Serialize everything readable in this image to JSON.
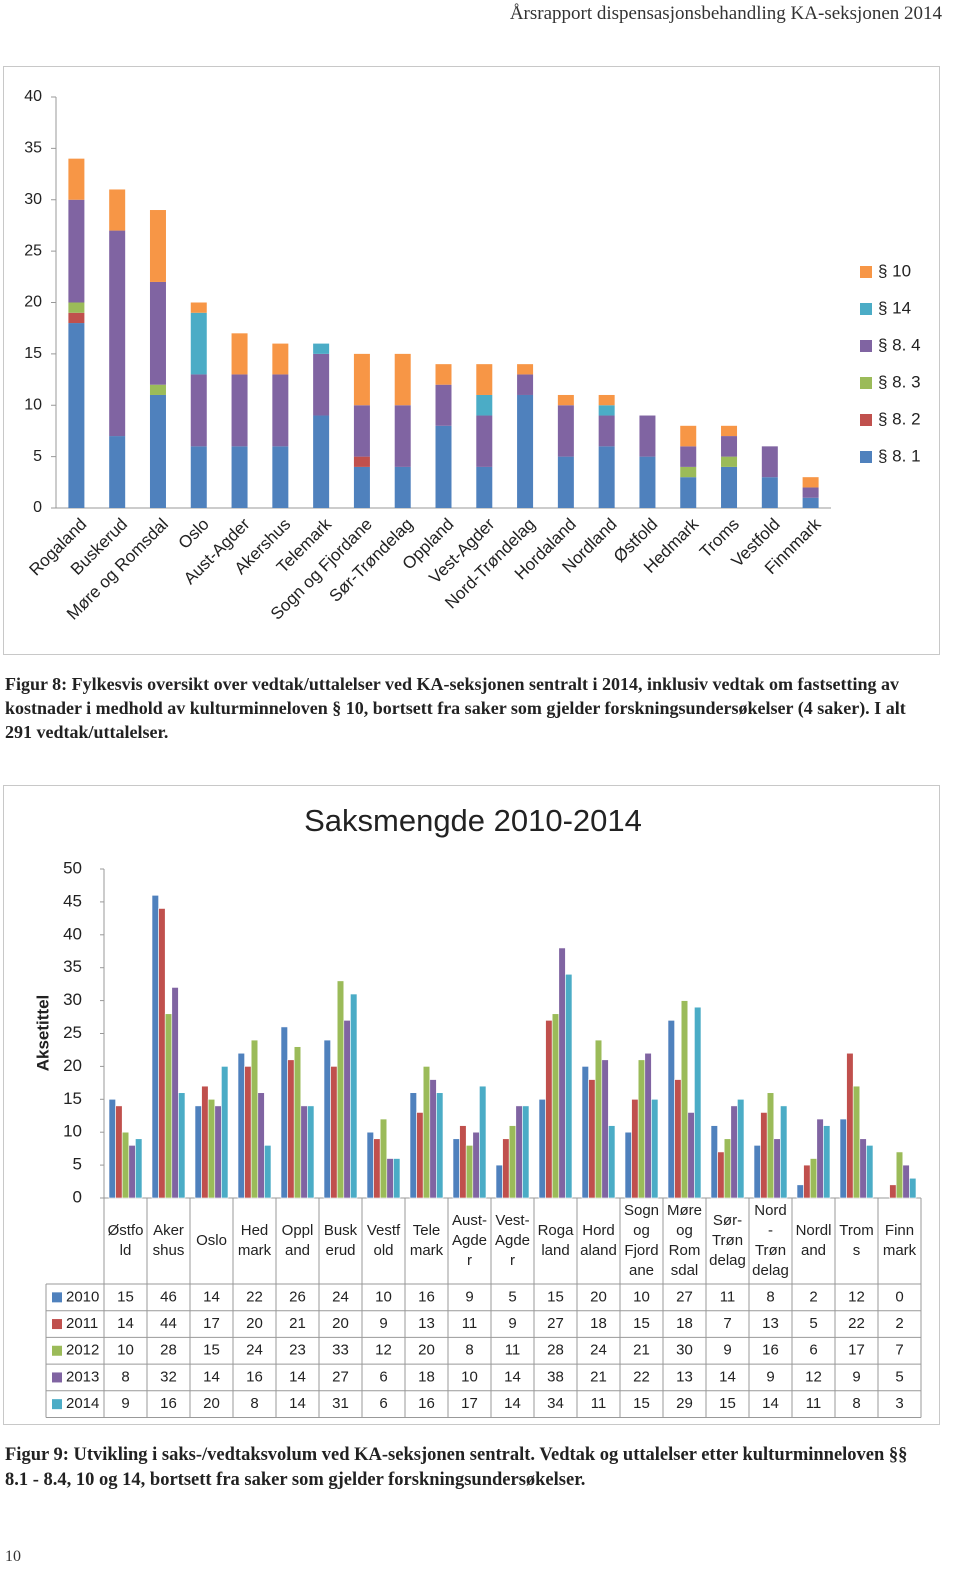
{
  "header": {
    "title": "Årsrapport dispensasjonsbehandling KA-seksjonen 2014"
  },
  "chart_data": [
    {
      "type": "bar",
      "stacked": true,
      "categories": [
        "Rogaland",
        "Buskerud",
        "Møre og Romsdal",
        "Oslo",
        "Aust-Agder",
        "Akershus",
        "Telemark",
        "Sogn og Fjordane",
        "Sør-Trøndelag",
        "Oppland",
        "Vest-Agder",
        "Nord-Trøndelag",
        "Hordaland",
        "Nordland",
        "Østfold",
        "Hedmark",
        "Troms",
        "Vestfold",
        "Finnmark"
      ],
      "series": [
        {
          "name": "§ 8. 1",
          "color": "#4f81bd",
          "values": [
            18,
            7,
            11,
            6,
            6,
            6,
            9,
            4,
            4,
            8,
            4,
            11,
            5,
            6,
            5,
            3,
            4,
            3,
            1
          ]
        },
        {
          "name": "§ 8. 2",
          "color": "#c0504d",
          "values": [
            1,
            0,
            0,
            0,
            0,
            0,
            0,
            1,
            0,
            0,
            0,
            0,
            0,
            0,
            0,
            0,
            0,
            0,
            0
          ]
        },
        {
          "name": "§ 8. 3",
          "color": "#9bbb59",
          "values": [
            1,
            0,
            1,
            0,
            0,
            0,
            0,
            0,
            0,
            0,
            0,
            0,
            0,
            0,
            0,
            1,
            1,
            0,
            0
          ]
        },
        {
          "name": "§ 8. 4",
          "color": "#8064a2",
          "values": [
            10,
            20,
            10,
            7,
            7,
            7,
            6,
            5,
            6,
            4,
            5,
            2,
            5,
            3,
            4,
            2,
            2,
            3,
            1
          ]
        },
        {
          "name": "§ 14",
          "color": "#4bacc6",
          "values": [
            0,
            0,
            0,
            6,
            0,
            0,
            1,
            0,
            0,
            0,
            2,
            0,
            0,
            1,
            0,
            0,
            0,
            0,
            0
          ]
        },
        {
          "name": "§ 10",
          "color": "#f79646",
          "values": [
            4,
            4,
            7,
            1,
            4,
            3,
            0,
            5,
            5,
            2,
            3,
            1,
            1,
            1,
            0,
            2,
            1,
            0,
            1
          ]
        }
      ],
      "ylim": [
        0,
        40
      ],
      "yticks": [
        0,
        5,
        10,
        15,
        20,
        25,
        30,
        35,
        40
      ],
      "legend": "right"
    },
    {
      "type": "bar",
      "title": "Saksmengde 2010-2014",
      "y_label": "Aksetittel",
      "data_table": true,
      "categories": [
        "Østfold",
        "Akershus",
        "Oslo",
        "Hedmark",
        "Oppland",
        "Buskerud",
        "Vestfold",
        "Telemark",
        "Aust-Agder",
        "Vest-Agder",
        "Rogaland",
        "Hordaland",
        "Sogn og Fjordane",
        "Møre og Romsdal",
        "Sør-Trøndelag",
        "Nord-Trøndelag",
        "Nordland",
        "Troms",
        "Finnmark"
      ],
      "series": [
        {
          "name": "2010",
          "color": "#4f81bd",
          "values": [
            15,
            46,
            14,
            22,
            26,
            24,
            10,
            16,
            9,
            5,
            15,
            20,
            10,
            27,
            11,
            8,
            2,
            12,
            0
          ]
        },
        {
          "name": "2011",
          "color": "#c0504d",
          "values": [
            14,
            44,
            17,
            20,
            21,
            20,
            9,
            13,
            11,
            9,
            27,
            18,
            15,
            18,
            7,
            13,
            5,
            22,
            2
          ]
        },
        {
          "name": "2012",
          "color": "#9bbb59",
          "values": [
            10,
            28,
            15,
            24,
            23,
            33,
            12,
            20,
            8,
            11,
            28,
            24,
            21,
            30,
            9,
            16,
            6,
            17,
            7
          ]
        },
        {
          "name": "2013",
          "color": "#8064a2",
          "values": [
            8,
            32,
            14,
            16,
            14,
            27,
            6,
            18,
            10,
            14,
            38,
            21,
            22,
            13,
            14,
            9,
            12,
            9,
            5
          ]
        },
        {
          "name": "2014",
          "color": "#4bacc6",
          "values": [
            9,
            16,
            20,
            8,
            14,
            31,
            6,
            16,
            17,
            14,
            34,
            11,
            15,
            29,
            15,
            14,
            11,
            8,
            3
          ]
        }
      ],
      "ylim": [
        0,
        50
      ],
      "yticks": [
        0,
        5,
        10,
        15,
        20,
        25,
        30,
        35,
        40,
        45,
        50
      ]
    }
  ],
  "captions": [
    "Figur 8: Fylkesvis oversikt over vedtak/uttalelser ved KA-seksjonen sentralt i 2014, inklusiv vedtak om fastsetting av kostnader i medhold av kulturminneloven § 10, bortsett fra saker som gjelder forskningsundersøkelser (4 saker). I alt 291 vedtak/uttalelser.",
    "Figur 9: Utvikling i saks-/vedtaksvolum ved KA-seksjonen sentralt. Vedtak og uttalelser etter kulturminneloven §§ 8.1 - 8.4, 10 og 14, bortsett fra saker som gjelder forskningsundersøkelser."
  ],
  "page_number": 10
}
